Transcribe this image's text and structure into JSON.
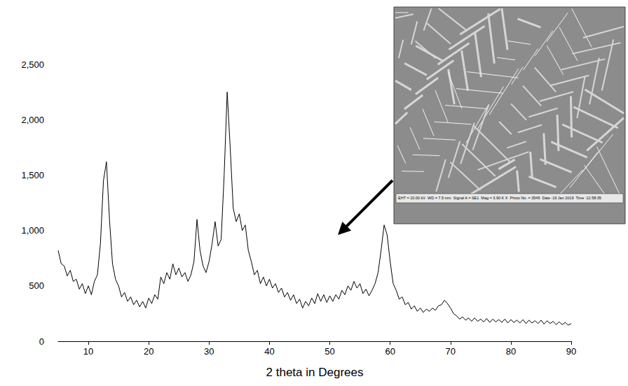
{
  "chart_data": {
    "type": "line",
    "x_label": "2 theta in Degrees",
    "color": "#000000",
    "grid": false,
    "xlim": [
      5,
      90
    ],
    "xticks": [
      10,
      20,
      30,
      40,
      50,
      60,
      70,
      80,
      90
    ],
    "ylim": [
      0,
      2500
    ],
    "yticks": [
      0,
      500,
      1000,
      1500,
      2000,
      2500
    ],
    "annotations": [
      "EHT = 20.00 kV  WD = 7.5 mm  Signal A = SE1  Mag = 3.90 K X  Photo No. = 3545  Date :19 Jan 2019  Time :12:58:35"
    ],
    "x": [
      5,
      5.5,
      6,
      6.5,
      7,
      7.5,
      8,
      8.5,
      9,
      9.5,
      10,
      10.5,
      11,
      11.5,
      12,
      12.5,
      13,
      13.5,
      14,
      14.5,
      15,
      15.5,
      16,
      16.5,
      17,
      17.5,
      18,
      18.5,
      19,
      19.5,
      20,
      20.5,
      21,
      21.5,
      22,
      22.5,
      23,
      23.5,
      24,
      24.5,
      25,
      25.5,
      26,
      26.5,
      27,
      27.5,
      28,
      28.5,
      29,
      29.5,
      30,
      30.5,
      31,
      31.5,
      32,
      32.5,
      33,
      33.5,
      34,
      34.5,
      35,
      35.5,
      36,
      36.5,
      37,
      37.5,
      38,
      38.5,
      39,
      39.5,
      40,
      40.5,
      41,
      41.5,
      42,
      42.5,
      43,
      43.5,
      44,
      44.5,
      45,
      45.5,
      46,
      46.5,
      47,
      47.5,
      48,
      48.5,
      49,
      49.5,
      50,
      50.5,
      51,
      51.5,
      52,
      52.5,
      53,
      53.5,
      54,
      54.5,
      55,
      55.5,
      56,
      56.5,
      57,
      57.5,
      58,
      58.5,
      59,
      59.5,
      60,
      60.5,
      61,
      61.5,
      62,
      62.5,
      63,
      63.5,
      64,
      64.5,
      65,
      65.5,
      66,
      66.5,
      67,
      67.5,
      68,
      68.5,
      69,
      69.5,
      70,
      70.5,
      71,
      71.5,
      72,
      72.5,
      73,
      73.5,
      74,
      74.5,
      75,
      75.5,
      76,
      76.5,
      77,
      77.5,
      78,
      78.5,
      79,
      79.5,
      80,
      80.5,
      81,
      81.5,
      82,
      82.5,
      83,
      83.5,
      84,
      84.5,
      85,
      85.5,
      86,
      86.5,
      87,
      87.5,
      88,
      88.5,
      89,
      89.5,
      90
    ],
    "values": [
      820,
      700,
      680,
      590,
      640,
      540,
      560,
      470,
      520,
      430,
      500,
      420,
      540,
      600,
      880,
      1450,
      1620,
      1100,
      700,
      560,
      500,
      400,
      440,
      360,
      400,
      330,
      370,
      310,
      360,
      300,
      390,
      340,
      420,
      380,
      580,
      520,
      620,
      560,
      700,
      600,
      660,
      580,
      620,
      540,
      600,
      720,
      1100,
      820,
      680,
      620,
      720,
      880,
      1080,
      860,
      920,
      1500,
      2250,
      1750,
      1200,
      1080,
      1150,
      1000,
      1050,
      820,
      720,
      600,
      640,
      520,
      580,
      500,
      560,
      480,
      520,
      440,
      480,
      400,
      440,
      370,
      420,
      340,
      380,
      300,
      360,
      320,
      390,
      340,
      430,
      360,
      420,
      350,
      410,
      360,
      420,
      380,
      460,
      420,
      500,
      460,
      540,
      480,
      520,
      430,
      470,
      410,
      460,
      520,
      620,
      820,
      1050,
      960,
      720,
      520,
      460,
      380,
      400,
      330,
      350,
      290,
      320,
      270,
      300,
      260,
      290,
      270,
      300,
      280,
      320,
      330,
      370,
      340,
      300,
      250,
      230,
      200,
      220,
      190,
      210,
      180,
      210,
      180,
      200,
      175,
      205,
      170,
      200,
      175,
      195,
      170,
      200,
      165,
      195,
      170,
      190,
      165,
      195,
      160,
      190,
      165,
      185,
      160,
      190,
      155,
      185,
      160,
      180,
      150,
      175,
      150,
      170,
      145,
      160
    ]
  }
}
